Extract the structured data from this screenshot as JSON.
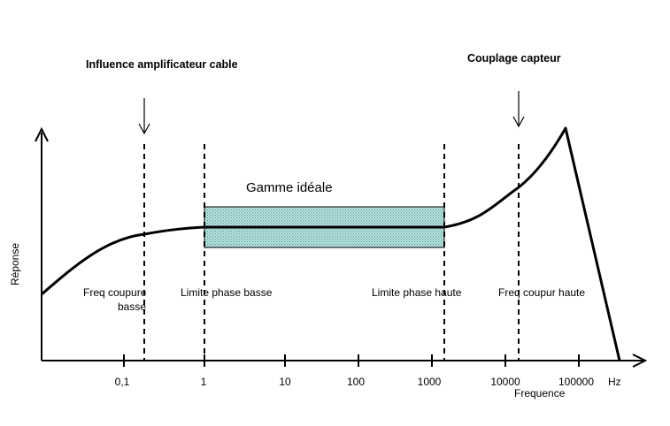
{
  "annotations": {
    "influence": "Influence amplificateur cable",
    "couplage": "Couplage capteur",
    "gamme": "Gamme idéale",
    "freq_basse_1": "Freq coupure",
    "freq_basse_2": "basse",
    "limite_basse": "Limite phase basse",
    "limite_haute": "Limite phase haute",
    "freq_haute": "Freq coupur haute"
  },
  "axes": {
    "ylabel": "Réponse",
    "xlabel": "Frequence",
    "unit": "Hz",
    "ticks": [
      "0,1",
      "1",
      "10",
      "100",
      "1000",
      "10000",
      "100000"
    ]
  },
  "colors": {
    "ideal_band_fill": "#b8e6e2",
    "ideal_band_dots": "#5a8f8c"
  }
}
